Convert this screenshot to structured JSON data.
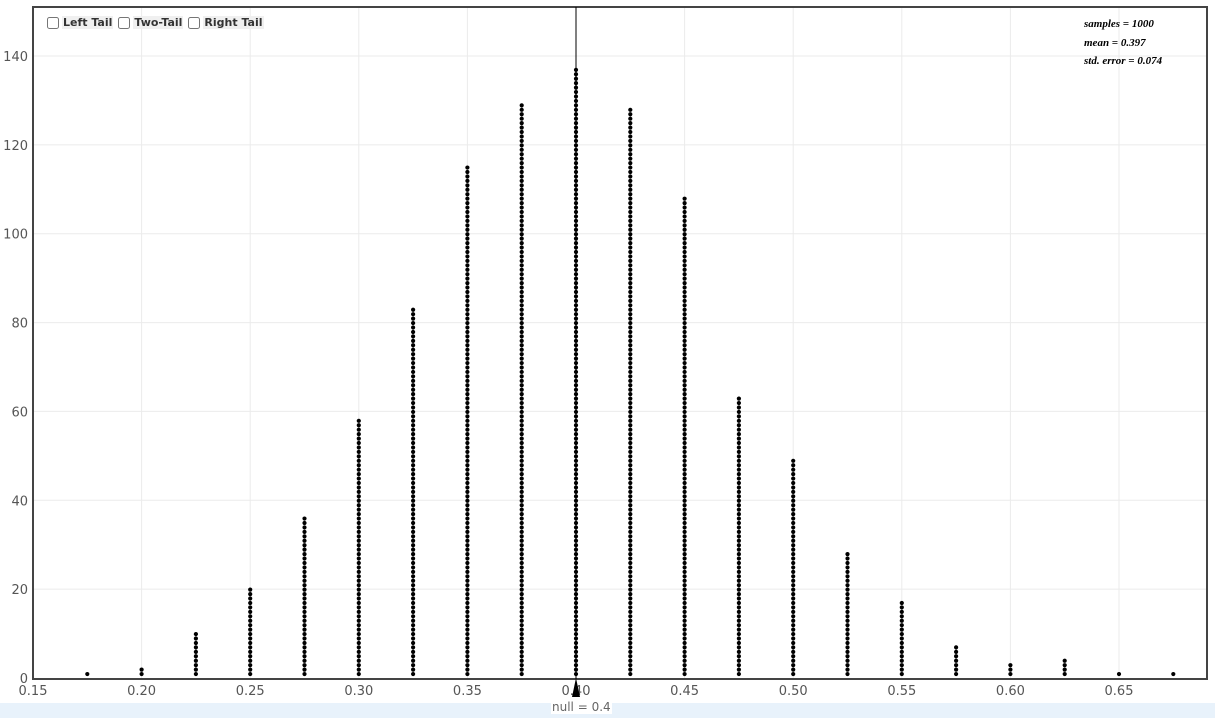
{
  "controls": {
    "left_tail": {
      "label": "Left Tail",
      "checked": false
    },
    "two_tail": {
      "label": "Two-Tail",
      "checked": false
    },
    "right_tail": {
      "label": "Right Tail",
      "checked": false
    }
  },
  "stats": {
    "samples": "samples = 1000",
    "mean": "mean = 0.397",
    "std_error": "std. error = 0.074"
  },
  "null_label": "null = 0.4",
  "chart_data": {
    "type": "scatter",
    "subtype": "dot-plot",
    "title": "",
    "xlabel": "",
    "ylabel": "",
    "xlim": [
      0.15,
      0.689
    ],
    "ylim": [
      0,
      155
    ],
    "grid": true,
    "x_ticks": [
      "0.15",
      "0.20",
      "0.25",
      "0.30",
      "0.35",
      "0.40",
      "0.45",
      "0.50",
      "0.55",
      "0.60",
      "0.65"
    ],
    "y_ticks": [
      "0",
      "20",
      "40",
      "60",
      "80",
      "100",
      "120",
      "140"
    ],
    "x": [
      0.175,
      0.2,
      0.225,
      0.25,
      0.275,
      0.3,
      0.325,
      0.35,
      0.375,
      0.4,
      0.425,
      0.45,
      0.475,
      0.5,
      0.525,
      0.55,
      0.575,
      0.6,
      0.625,
      0.65,
      0.675
    ],
    "counts": [
      1,
      2,
      10,
      20,
      36,
      58,
      83,
      115,
      129,
      137,
      128,
      108,
      63,
      49,
      28,
      17,
      7,
      3,
      4,
      1,
      1
    ],
    "null_value": 0.4,
    "dot_color": "#000000",
    "band_color": "#e8f2fb"
  }
}
